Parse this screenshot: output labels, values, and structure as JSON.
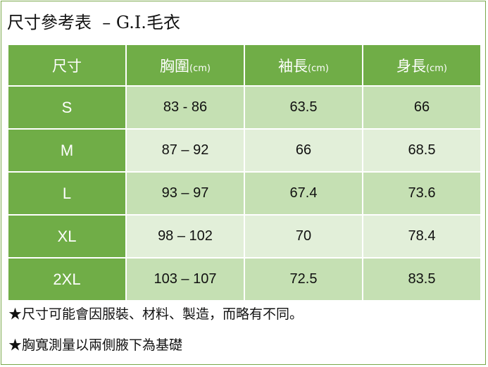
{
  "title": "尺寸參考表  – G.I.毛衣",
  "header": {
    "size": "尺寸",
    "chest": "胸圍",
    "chest_unit": "(cm)",
    "sleeve": "袖長",
    "sleeve_unit": "(cm)",
    "body": "身長",
    "body_unit": "(cm)"
  },
  "rows": [
    {
      "size": "S",
      "chest": "83 - 86",
      "sleeve": "63.5",
      "body": "66"
    },
    {
      "size": "M",
      "chest": "87 – 92",
      "sleeve": "66",
      "body": "68.5"
    },
    {
      "size": "L",
      "chest": "93 – 97",
      "sleeve": "67.4",
      "body": "73.6"
    },
    {
      "size": "XL",
      "chest": "98 – 102",
      "sleeve": "70",
      "body": "78.4"
    },
    {
      "size": "2XL",
      "chest": "103 – 107",
      "sleeve": "72.5",
      "body": "83.5"
    }
  ],
  "notes": [
    "★尺寸可能會因服裝、材料、製造，而略有不同。",
    "★胸寬測量以兩側腋下為基礎"
  ],
  "colors": {
    "header_green": "#70ad47",
    "row_dark": "#c5e0b3",
    "row_light": "#e2efd9",
    "border": "#7aa84a"
  }
}
